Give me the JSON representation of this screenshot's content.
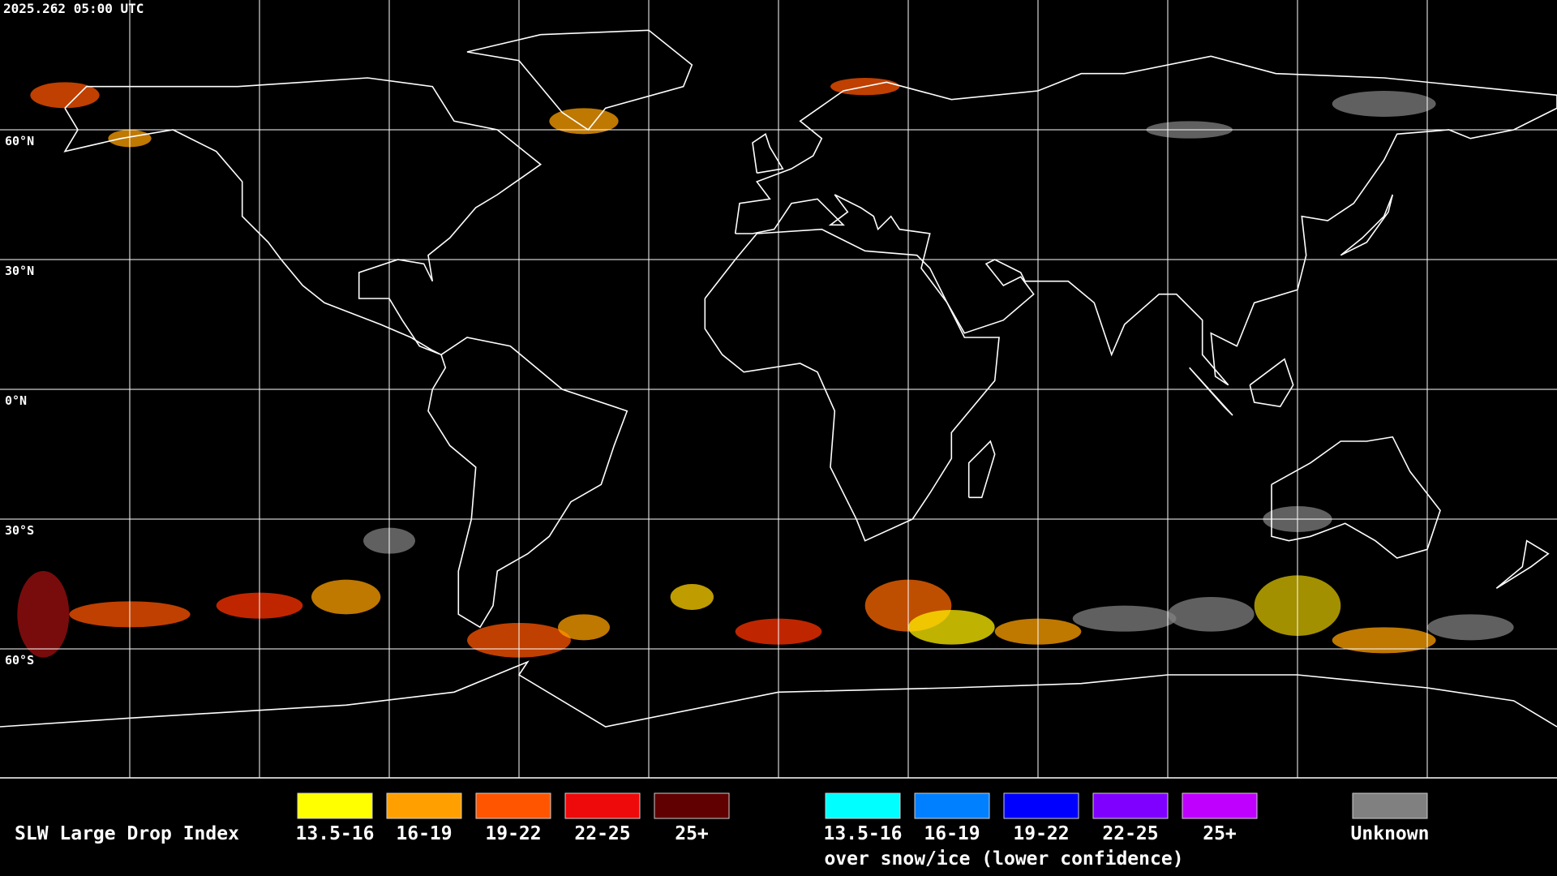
{
  "header": {
    "timestamp": "2025.262 05:00 UTC"
  },
  "map": {
    "latitude_labels": [
      "60°N",
      "30°N",
      "0°N",
      "30°S",
      "60°S"
    ]
  },
  "legend": {
    "title": "SLW Large Drop Index",
    "items": [
      {
        "label": "13.5-16",
        "color": "#ffff00"
      },
      {
        "label": "16-19",
        "color": "#ffa000"
      },
      {
        "label": "19-22",
        "color": "#ff5500"
      },
      {
        "label": "22-25",
        "color": "#ee0a0a"
      },
      {
        "label": "25+",
        "color": "#600000"
      }
    ],
    "snow_ice_items": [
      {
        "label": "13.5-16",
        "color": "#00ffff"
      },
      {
        "label": "16-19",
        "color": "#0080ff"
      },
      {
        "label": "19-22",
        "color": "#0000ff"
      },
      {
        "label": "22-25",
        "color": "#8000ff"
      },
      {
        "label": "25+",
        "color": "#c000ff"
      }
    ],
    "snow_ice_caption": "over snow/ice (lower confidence)",
    "unknown": {
      "label": "Unknown",
      "color": "#808080"
    }
  }
}
